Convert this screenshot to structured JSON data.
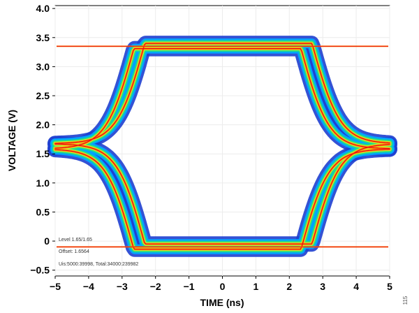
{
  "chart_data": {
    "type": "eye-diagram",
    "xlabel": "TIME (ns)",
    "ylabel": "VOLTAGE (V)",
    "xlim": [
      -5,
      5
    ],
    "ylim": [
      -0.6,
      4.05
    ],
    "xticks": [
      -5,
      -4,
      -3,
      -2,
      -1,
      0,
      1,
      2,
      3,
      4,
      5
    ],
    "yticks": [
      -0.5,
      0,
      0.5,
      1.0,
      1.5,
      2.0,
      2.5,
      3.0,
      3.5,
      4.0
    ],
    "xtick_labels": [
      "−5",
      "−4",
      "−3",
      "−2",
      "−1",
      "0",
      "1",
      "2",
      "3",
      "4",
      "5"
    ],
    "ytick_labels": [
      "−0.5",
      "0",
      "0.5",
      "1.0",
      "1.5",
      "2.0",
      "2.5",
      "3.0",
      "3.5",
      "4.0"
    ],
    "high_level_v": 3.35,
    "low_level_v": -0.1,
    "crossing_time_ns": [
      -2.5,
      2.5
    ],
    "crossing_voltage_v": 1.65,
    "grid": true,
    "colors": {
      "outer": "#1e3fd0",
      "mid_outer": "#00a8ff",
      "mid": "#22dd88",
      "mid_inner": "#d8ee20",
      "inner": "#ff8a10",
      "core": "#e81010"
    }
  },
  "scope_overlay": {
    "line1": "Level 1.65/1.65",
    "line2": "Offset: 1.6564",
    "line3": "Uis:5000:39998, Total:34000:239982"
  },
  "figure_number": "115"
}
